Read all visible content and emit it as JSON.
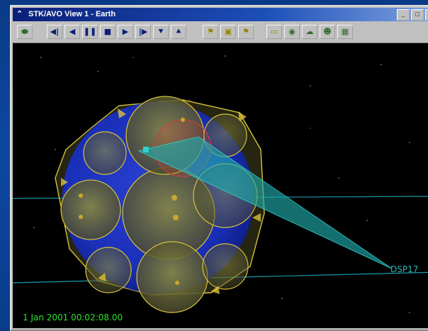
{
  "window": {
    "title": "STK/AVO View 1 - Earth",
    "controls": [
      "_",
      "□",
      "×"
    ]
  },
  "toolbar": {
    "buttons": [
      {
        "name": "view-icon-button",
        "glyph": "⬬"
      },
      {
        "name": "step-back-button",
        "glyph": "◀|"
      },
      {
        "name": "reverse-button",
        "glyph": "◀"
      },
      {
        "name": "pause-button",
        "glyph": "❚❚"
      },
      {
        "name": "stop-button",
        "glyph": "■"
      },
      {
        "name": "play-button",
        "glyph": "▶"
      },
      {
        "name": "step-forward-button",
        "glyph": "|▶"
      },
      {
        "name": "decrease-step-button",
        "glyph": "⯆"
      },
      {
        "name": "increase-step-button",
        "glyph": "⯅"
      },
      {
        "name": "tool-a-button",
        "glyph": "⚑"
      },
      {
        "name": "tool-b-button",
        "glyph": "▣"
      },
      {
        "name": "tool-c-button",
        "glyph": "⚑"
      },
      {
        "name": "folder-button",
        "glyph": "▭"
      },
      {
        "name": "globe-button",
        "glyph": "◉"
      },
      {
        "name": "cloud-button",
        "glyph": "☁"
      },
      {
        "name": "person-button",
        "glyph": "☻"
      },
      {
        "name": "map-button",
        "glyph": "▦"
      }
    ]
  },
  "scene": {
    "satellite_label": "DSP17",
    "timestamp": "1 Jan 2001 00:02:08.00",
    "colors": {
      "background": "#000000",
      "earth_blue": "#1a2fb8",
      "coverage_yellow": "#d8c23a",
      "sensor_cone": "#1fa9a9",
      "orbit_line": "#1a9aa8",
      "timestamp_green": "#2ee02e"
    }
  }
}
